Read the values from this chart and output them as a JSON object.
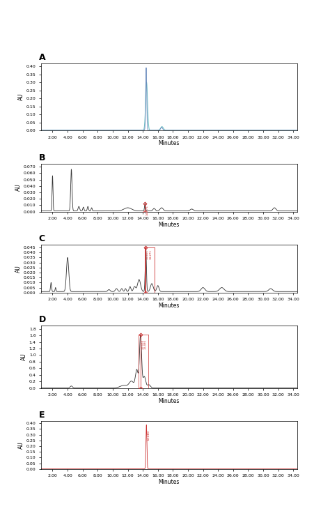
{
  "panels": [
    "A",
    "B",
    "C",
    "D",
    "E"
  ],
  "x_min": 0.5,
  "x_max": 34.5,
  "x_ticks": [
    2.0,
    4.0,
    6.0,
    8.0,
    10.0,
    12.0,
    14.0,
    16.0,
    18.0,
    20.0,
    22.0,
    24.0,
    26.0,
    28.0,
    30.0,
    32.0,
    34.0
  ],
  "xlabel": "Minutes",
  "ylabel": "AU",
  "fig_bg": "#ffffff",
  "panel_bg": "#ffffff",
  "line_color_dark": "#333333",
  "line_color_blue": "#6688bb",
  "line_color_teal": "#55bbbb",
  "line_color_red": "#cc3333",
  "annotation_color": "#cc3333",
  "panel_heights": [
    1.4,
    1.0,
    1.0,
    1.3,
    1.0
  ],
  "A_ylim": [
    0.0,
    0.42
  ],
  "A_yticks": [
    0.0,
    0.05,
    0.1,
    0.15,
    0.2,
    0.25,
    0.3,
    0.35,
    0.4
  ],
  "B_ylim": [
    0.0,
    0.075
  ],
  "B_yticks": [
    0.0,
    0.01,
    0.02,
    0.03,
    0.04,
    0.05,
    0.06,
    0.07
  ],
  "C_ylim": [
    0.0,
    0.048
  ],
  "C_yticks": [
    0.0,
    0.005,
    0.01,
    0.015,
    0.02,
    0.025,
    0.03,
    0.035,
    0.04,
    0.045
  ],
  "D_ylim": [
    0.0,
    1.9
  ],
  "D_yticks": [
    0.0,
    0.2,
    0.4,
    0.6,
    0.8,
    1.0,
    1.2,
    1.4,
    1.6,
    1.8
  ],
  "E_ylim": [
    0.0,
    0.42
  ],
  "E_yticks": [
    0.0,
    0.05,
    0.1,
    0.15,
    0.2,
    0.25,
    0.3,
    0.35,
    0.4
  ],
  "hspace": 0.6,
  "tick_fontsize": 4.5,
  "label_fontsize": 5.5,
  "panel_label_fontsize": 9
}
